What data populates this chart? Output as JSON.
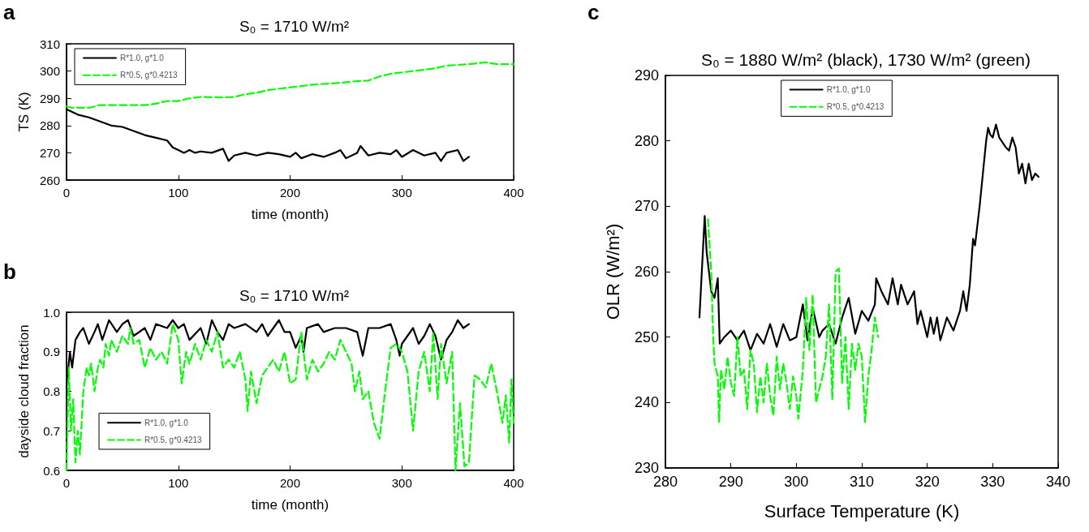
{
  "chart_data": [
    {
      "type": "line",
      "title": "S₀ = 1710 W/m²",
      "xlabel": "time (month)",
      "ylabel": "TS (K)",
      "annotations": [
        "a"
      ],
      "xlim": [
        0,
        400
      ],
      "xticks": [
        0,
        100,
        200,
        300,
        400
      ],
      "ylim": [
        260,
        310
      ],
      "yticks": [
        260,
        270,
        280,
        290,
        300,
        310
      ],
      "grid": false,
      "legend": "top left",
      "marker": "none",
      "series": [
        {
          "name": "R*1.0, g*1.0",
          "color": "#000000",
          "line_style": "solid",
          "x": [
            0,
            5,
            10,
            20,
            30,
            40,
            50,
            60,
            70,
            80,
            90,
            95,
            100,
            105,
            110,
            115,
            120,
            130,
            140,
            145,
            150,
            160,
            170,
            180,
            190,
            200,
            205,
            210,
            220,
            230,
            240,
            245,
            250,
            260,
            263,
            270,
            280,
            290,
            295,
            300,
            310,
            320,
            330,
            335,
            340,
            350,
            355,
            360
          ],
          "values": [
            286,
            285,
            284,
            283,
            281.5,
            280,
            279.5,
            278,
            276.5,
            275.5,
            274.5,
            272,
            271,
            270,
            271,
            270,
            270.5,
            270,
            271.5,
            267,
            269,
            270,
            269,
            270,
            269.5,
            268.5,
            270,
            268,
            269.5,
            268.5,
            270,
            271,
            268,
            270,
            272.5,
            269,
            270,
            269.5,
            271,
            268.5,
            271,
            269,
            270,
            267,
            270,
            271,
            267,
            268.5
          ]
        },
        {
          "name": "R*0.5, g*0.4213",
          "color": "#00ff00",
          "line_style": "dashed",
          "x": [
            0,
            5,
            20,
            30,
            50,
            70,
            80,
            90,
            100,
            110,
            120,
            140,
            150,
            160,
            170,
            180,
            200,
            210,
            220,
            240,
            260,
            270,
            280,
            290,
            300,
            310,
            320,
            330,
            340,
            360,
            375,
            385,
            400
          ],
          "values": [
            287,
            286.5,
            286.5,
            287.5,
            287.5,
            287.5,
            288,
            289,
            289,
            290,
            290.5,
            290.3,
            290.5,
            291.5,
            292,
            293,
            294,
            294.5,
            295,
            295.5,
            296.3,
            296.5,
            298,
            299,
            299.5,
            300,
            300.5,
            301,
            302,
            302.5,
            303.2,
            302.5,
            302.5
          ]
        }
      ]
    },
    {
      "type": "line",
      "title": "S₀ = 1710 W/m²",
      "xlabel": "time (month)",
      "ylabel": "dayside cloud fraction",
      "annotations": [
        "b"
      ],
      "xlim": [
        0,
        400
      ],
      "xticks": [
        0,
        100,
        200,
        300,
        400
      ],
      "ylim": [
        0.6,
        1.0
      ],
      "yticks": [
        0.6,
        0.7,
        0.8,
        0.9,
        {
          "value": 1,
          "label": "1.0"
        }
      ],
      "grid": false,
      "legend": "bottom left",
      "marker": "none",
      "series": [
        {
          "name": "R*1.0, g*1.0",
          "color": "#000000",
          "line_style": "solid",
          "x": [
            0,
            3,
            5,
            8,
            12,
            15,
            20,
            25,
            28,
            32,
            38,
            45,
            50,
            55,
            60,
            70,
            75,
            80,
            90,
            95,
            100,
            105,
            110,
            120,
            125,
            130,
            135,
            140,
            145,
            150,
            160,
            170,
            175,
            180,
            190,
            195,
            200,
            205,
            210,
            212,
            215,
            225,
            230,
            240,
            250,
            260,
            265,
            270,
            280,
            290,
            295,
            298,
            300,
            310,
            315,
            320,
            325,
            330,
            335,
            340,
            345,
            350,
            355,
            360
          ],
          "values": [
            0.81,
            0.9,
            0.86,
            0.93,
            0.95,
            0.96,
            0.92,
            0.95,
            0.97,
            0.93,
            0.98,
            0.95,
            0.97,
            0.98,
            0.94,
            0.96,
            0.93,
            0.97,
            0.96,
            0.98,
            0.96,
            0.97,
            0.93,
            0.96,
            0.92,
            0.98,
            0.95,
            0.93,
            0.97,
            0.96,
            0.97,
            0.95,
            0.97,
            0.94,
            0.98,
            0.95,
            0.95,
            0.91,
            0.94,
            0.9,
            0.96,
            0.97,
            0.95,
            0.96,
            0.96,
            0.95,
            0.89,
            0.96,
            0.96,
            0.97,
            0.93,
            0.89,
            0.92,
            0.96,
            0.92,
            0.94,
            0.97,
            0.94,
            0.88,
            0.93,
            0.95,
            0.98,
            0.96,
            0.97
          ]
        },
        {
          "name": "R*0.5, g*0.4213",
          "color": "#00ff00",
          "line_style": "dashed",
          "x": [
            0,
            2,
            4,
            6,
            8,
            10,
            12,
            15,
            18,
            20,
            22,
            25,
            28,
            30,
            33,
            35,
            38,
            40,
            45,
            50,
            55,
            57,
            60,
            65,
            70,
            75,
            80,
            85,
            90,
            95,
            100,
            103,
            107,
            110,
            115,
            120,
            125,
            130,
            135,
            140,
            145,
            150,
            155,
            160,
            162,
            165,
            170,
            175,
            180,
            185,
            190,
            195,
            200,
            205,
            210,
            215,
            220,
            225,
            230,
            235,
            240,
            245,
            250,
            255,
            258,
            262,
            265,
            270,
            275,
            280,
            285,
            290,
            295,
            300,
            305,
            310,
            315,
            320,
            325,
            328,
            332,
            335,
            340,
            345,
            348,
            352,
            356,
            360,
            365,
            370,
            375,
            380,
            385,
            390,
            393,
            396,
            398,
            400
          ],
          "values": [
            0.6,
            0.86,
            0.7,
            0.78,
            0.62,
            0.7,
            0.64,
            0.8,
            0.86,
            0.84,
            0.87,
            0.8,
            0.86,
            0.88,
            0.86,
            0.92,
            0.89,
            0.93,
            0.9,
            0.94,
            0.92,
            0.96,
            0.92,
            0.93,
            0.86,
            0.91,
            0.88,
            0.9,
            0.87,
            0.97,
            0.93,
            0.82,
            0.9,
            0.87,
            0.92,
            0.88,
            0.93,
            0.9,
            0.95,
            0.86,
            0.88,
            0.86,
            0.9,
            0.83,
            0.75,
            0.85,
            0.77,
            0.84,
            0.86,
            0.88,
            0.85,
            0.9,
            0.82,
            0.83,
            0.95,
            0.83,
            0.88,
            0.85,
            0.87,
            0.9,
            0.88,
            0.93,
            0.9,
            0.87,
            0.8,
            0.85,
            0.78,
            0.8,
            0.72,
            0.68,
            0.8,
            0.91,
            0.92,
            0.9,
            0.85,
            0.7,
            0.85,
            0.9,
            0.8,
            0.95,
            0.78,
            0.92,
            0.82,
            0.9,
            0.6,
            0.77,
            0.61,
            0.62,
            0.84,
            0.83,
            0.81,
            0.87,
            0.8,
            0.72,
            0.79,
            0.67,
            0.83,
            0.72
          ]
        }
      ]
    },
    {
      "type": "line",
      "title": "S₀ = 1880 W/m² (black), 1730 W/m² (green)",
      "xlabel": "Surface Temperature (K)",
      "ylabel": "OLR (W/m²)",
      "annotations": [
        "c"
      ],
      "xlim": [
        280,
        340
      ],
      "xticks": [
        280,
        290,
        300,
        310,
        320,
        330,
        340
      ],
      "ylim": [
        230,
        290
      ],
      "yticks": [
        230,
        240,
        250,
        260,
        270,
        280,
        290
      ],
      "grid": false,
      "legend": "top",
      "marker": "none",
      "series": [
        {
          "name": "R*1.0, g*1.0",
          "color": "#000000",
          "line_style": "solid",
          "x": [
            285.2,
            286,
            286.3,
            287,
            287.5,
            288,
            288.3,
            289,
            290,
            291,
            292,
            293,
            294,
            295,
            296,
            297,
            298,
            299,
            300,
            301,
            301.7,
            302.5,
            303.5,
            304,
            305,
            306,
            307,
            308,
            309,
            310,
            311,
            312,
            312.2,
            313,
            314,
            314.7,
            315.5,
            316,
            317,
            318,
            318.5,
            319,
            320,
            320.5,
            321,
            321.5,
            322,
            323,
            324,
            325,
            325.5,
            326,
            326.5,
            327,
            327.3,
            328,
            328.5,
            329,
            329.3,
            329.6,
            330,
            330.5,
            331,
            332,
            332.5,
            333,
            333.5,
            334,
            334.5,
            335,
            335.5,
            336,
            336.5,
            337
          ],
          "values": [
            253,
            268.5,
            263,
            257,
            256,
            259,
            249,
            250,
            251,
            249.5,
            251,
            248,
            250.5,
            249,
            252,
            248.5,
            252,
            249.5,
            250,
            255,
            249.5,
            254.5,
            250,
            251,
            252,
            249,
            253,
            256,
            250.5,
            254,
            252.5,
            255,
            259,
            257,
            255,
            259,
            255,
            258,
            255,
            257,
            252,
            254,
            250,
            253,
            250.5,
            253,
            249.5,
            253,
            251,
            254,
            257,
            254,
            258,
            265,
            264,
            270,
            275,
            280,
            282,
            281,
            280.5,
            282.5,
            280.5,
            279,
            278.5,
            280.5,
            279,
            275,
            276.5,
            273.5,
            276.5,
            274,
            275,
            274.5
          ]
        },
        {
          "name": "R*0.5, g*0.4213",
          "color": "#00ff00",
          "line_style": "dashed",
          "x": [
            286.5,
            287,
            287.3,
            287.5,
            288,
            288.2,
            288.5,
            289,
            289.5,
            290,
            290.5,
            291,
            291.5,
            292,
            292.5,
            293,
            293.5,
            294,
            294.5,
            295,
            295.5,
            296,
            296.5,
            297,
            297.5,
            298,
            298.5,
            299,
            299.5,
            300,
            300.3,
            301,
            301.5,
            302,
            302.5,
            303,
            304,
            304.5,
            305,
            305.5,
            306,
            306.5,
            307,
            307.5,
            308,
            308.5,
            309,
            309.5,
            310,
            310.5,
            311,
            311.5,
            312,
            312.5
          ],
          "values": [
            268,
            260,
            250,
            246,
            244,
            237,
            245,
            242,
            247,
            243,
            241,
            250,
            244,
            245,
            239,
            248,
            246,
            238.5,
            244,
            240,
            246,
            241,
            238,
            247,
            242,
            246,
            243,
            239,
            244,
            241,
            237.5,
            245,
            256,
            248,
            256.5,
            240,
            244,
            247,
            255,
            240.5,
            260,
            260.5,
            243,
            250,
            239,
            249,
            245,
            249,
            247,
            237,
            244,
            248,
            253,
            250
          ]
        }
      ]
    }
  ]
}
